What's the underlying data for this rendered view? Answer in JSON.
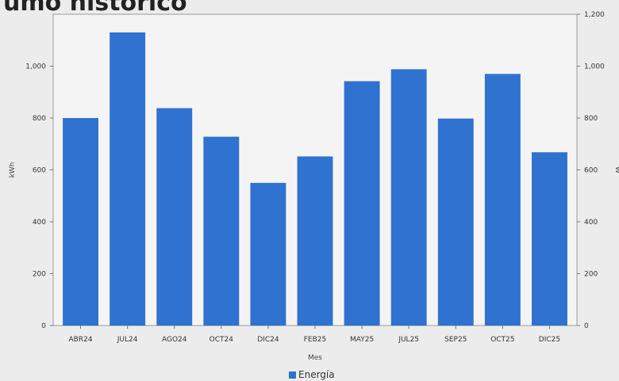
{
  "title": "umo histórico",
  "chart_data": {
    "type": "bar",
    "categories": [
      "ABR24",
      "JUL24",
      "AGO24",
      "OCT24",
      "DIC24",
      "FEB25",
      "MAY25",
      "JUL25",
      "SEP25",
      "OCT25",
      "DIC25"
    ],
    "series": [
      {
        "name": "Energía",
        "values": [
          800,
          1130,
          838,
          728,
          550,
          652,
          942,
          988,
          798,
          970,
          668
        ],
        "color": "#2f72cf"
      }
    ],
    "xlabel": "Mes",
    "ylabel": "kWh",
    "y2label": "W",
    "ylim": [
      0,
      1200
    ],
    "y2lim": [
      0,
      1200
    ],
    "yticks": [
      0,
      200,
      400,
      600,
      800,
      1000
    ],
    "y2ticks": [
      0,
      200,
      400,
      600,
      800,
      1000,
      1200
    ],
    "yticklabels": [
      "0",
      "200",
      "400",
      "600",
      "800",
      "1,000"
    ],
    "y2ticklabels": [
      "0",
      "200",
      "400",
      "600",
      "800",
      "1,000",
      "1,200"
    ],
    "grid": false,
    "legend_position": "bottom"
  }
}
